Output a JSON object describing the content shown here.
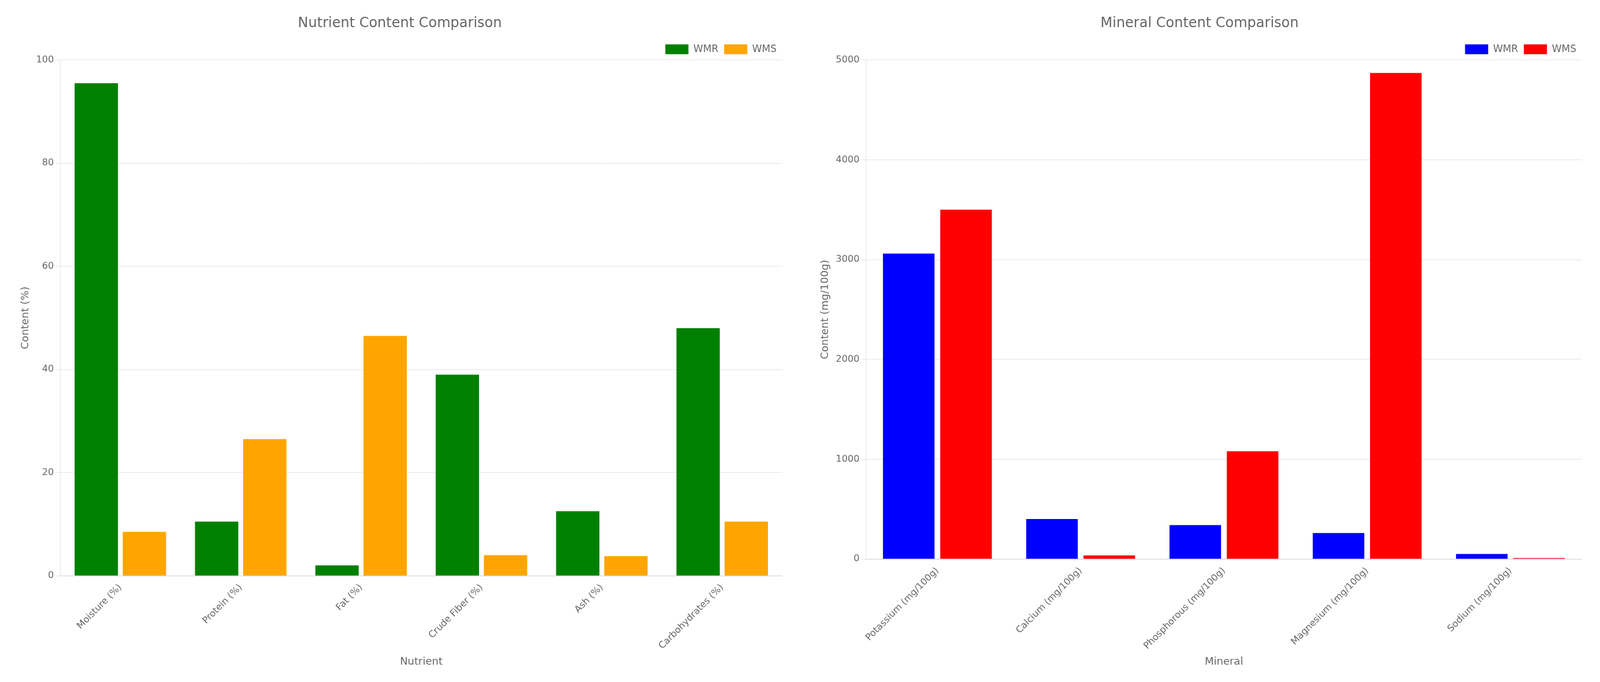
{
  "chart_data": [
    {
      "type": "bar",
      "title": "Nutrient Content Comparison",
      "xlabel": "Nutrient",
      "ylabel": "Content (%)",
      "categories": [
        "Moisture (%)",
        "Protein (%)",
        "Fat (%)",
        "Crude Fiber (%)",
        "Ash (%)",
        "Carbohydrates (%)"
      ],
      "series": [
        {
          "name": "WMR",
          "color": "#008000",
          "values": [
            95.5,
            10.5,
            2.0,
            39.0,
            12.5,
            48.0
          ]
        },
        {
          "name": "WMS",
          "color": "#FFA500",
          "values": [
            8.5,
            26.5,
            46.5,
            4.0,
            3.8,
            10.5
          ]
        }
      ],
      "ylim": [
        0,
        100
      ],
      "yticks": [
        0,
        20,
        40,
        60,
        80,
        100
      ],
      "grid": true,
      "legend": "upper right"
    },
    {
      "type": "bar",
      "title": "Mineral Content Comparison",
      "xlabel": "Mineral",
      "ylabel": "Content (mg/100g)",
      "categories": [
        "Potassium (mg/100g)",
        "Calcium (mg/100g)",
        "Phosphorous (mg/100g)",
        "Magnesium (mg/100g)",
        "Sodium (mg/100g)"
      ],
      "series": [
        {
          "name": "WMR",
          "color": "#0000FF",
          "values": [
            3060,
            400,
            340,
            260,
            50
          ]
        },
        {
          "name": "WMS",
          "color": "#FF0000",
          "values": [
            3500,
            35,
            1080,
            4870,
            10
          ]
        }
      ],
      "ylim": [
        0,
        5000
      ],
      "yticks": [
        0,
        1000,
        2000,
        3000,
        4000,
        5000
      ],
      "grid": true,
      "legend": "upper right"
    }
  ]
}
